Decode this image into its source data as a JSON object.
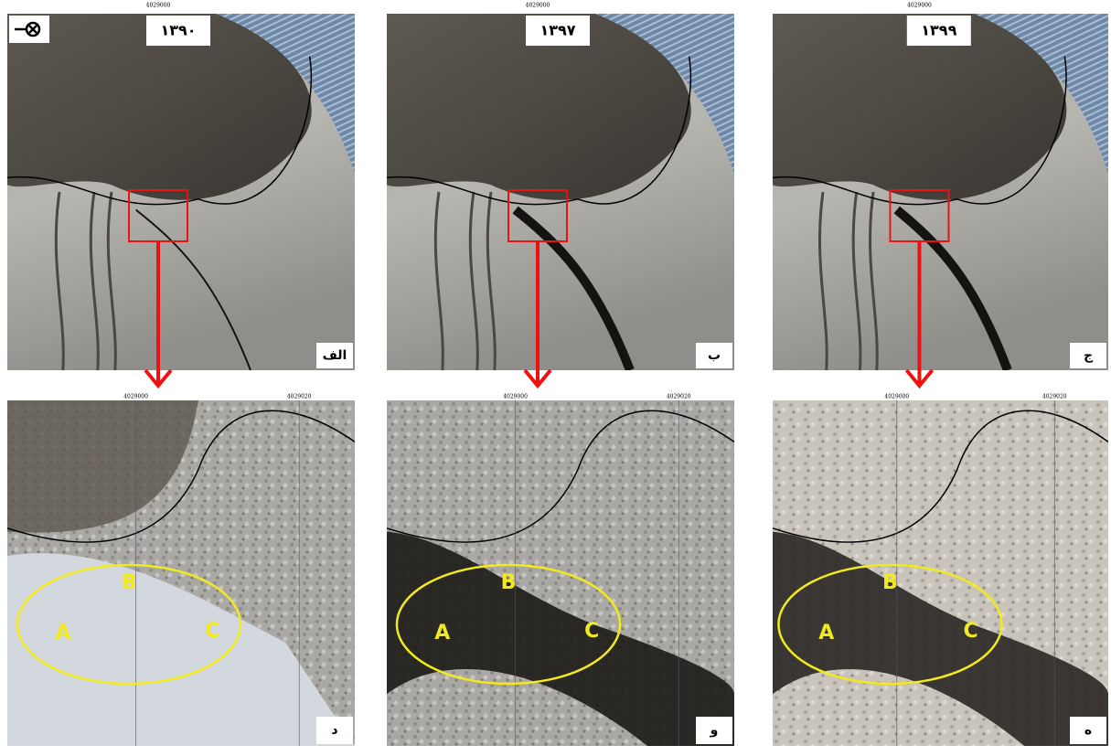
{
  "panels": [
    {
      "year": "۱۳۹۰",
      "label": "الف",
      "coord": "4029000"
    },
    {
      "year": "۱۳۹۷",
      "label": "ب",
      "coord": "4029000"
    },
    {
      "year": "۱۳۹۹",
      "label": "ج",
      "coord": "4029000"
    }
  ],
  "details": [
    {
      "label": "د",
      "points": [
        "A",
        "B",
        "C"
      ],
      "coords": [
        "4029000",
        "4029020"
      ]
    },
    {
      "label": "و",
      "points": [
        "A",
        "B",
        "C"
      ],
      "coords": [
        "4029000",
        "4029020"
      ]
    },
    {
      "label": "ه",
      "points": [
        "A",
        "B",
        "C"
      ],
      "coords": [
        "4029000",
        "4029020"
      ]
    }
  ]
}
